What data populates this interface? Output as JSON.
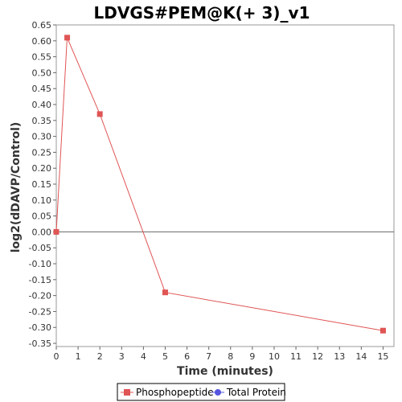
{
  "chart_data": {
    "type": "line",
    "title": "LDVGS#PEM@K(+ 3)_v1",
    "xlabel": "Time (minutes)",
    "ylabel": "log2(dDAVP/Control)",
    "xlim": [
      0,
      15.5
    ],
    "ylim": [
      -0.36,
      0.65
    ],
    "x_ticks": [
      0,
      1,
      2,
      3,
      4,
      5,
      6,
      7,
      8,
      9,
      10,
      11,
      12,
      13,
      14,
      15
    ],
    "y_ticks": [
      0.65,
      0.6,
      0.55,
      0.5,
      0.45,
      0.4,
      0.35,
      0.3,
      0.25,
      0.2,
      0.15,
      0.1,
      0.05,
      0.0,
      -0.05,
      -0.1,
      -0.15,
      -0.2,
      -0.25,
      -0.3,
      -0.35
    ],
    "grid": false,
    "zero_line": true,
    "legend_position": "bottom",
    "series": [
      {
        "name": "Phosphopeptide",
        "color": "#e05555",
        "marker": "square",
        "x": [
          0,
          0.5,
          2,
          5,
          15
        ],
        "y": [
          0.0,
          0.61,
          0.37,
          -0.19,
          -0.31
        ]
      },
      {
        "name": "Total Protein",
        "color": "#5555e0",
        "marker": "circle",
        "x": [],
        "y": []
      }
    ]
  }
}
